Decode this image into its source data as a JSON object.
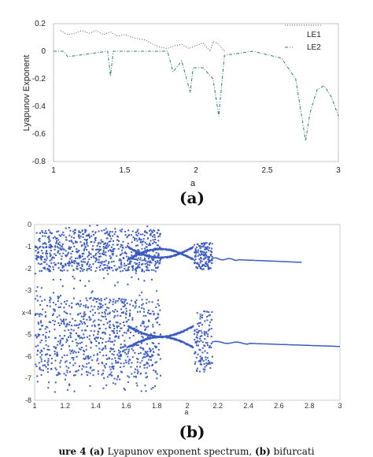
{
  "chart_data": [
    {
      "type": "line",
      "panel_label": "(a)",
      "xlabel": "a",
      "ylabel": "Lyapunov Exponent",
      "xlim": [
        1,
        3
      ],
      "ylim": [
        -0.8,
        0.2
      ],
      "xticks": [
        "1",
        "1.5",
        "2",
        "2.5",
        "3"
      ],
      "yticks": [
        "0.2",
        "0",
        "-0.2",
        "-0.4",
        "-0.6",
        "-0.8"
      ],
      "legend_position": "top-right",
      "series": [
        {
          "name": "LE1",
          "color": "#555555",
          "style": "dotted",
          "x": [
            1.05,
            1.1,
            1.15,
            1.2,
            1.25,
            1.3,
            1.35,
            1.4,
            1.45,
            1.5,
            1.55,
            1.6,
            1.65,
            1.7,
            1.75,
            1.8,
            1.85,
            1.9,
            1.95,
            2.0,
            2.05,
            2.1,
            2.12,
            2.15,
            2.2
          ],
          "values": [
            0.15,
            0.12,
            0.13,
            0.15,
            0.13,
            0.15,
            0.12,
            0.14,
            0.11,
            0.12,
            0.1,
            0.09,
            0.08,
            0.05,
            0.03,
            0.02,
            0.04,
            0.05,
            0.02,
            0.04,
            0.06,
            0.0,
            0.07,
            0.06,
            0.0
          ]
        },
        {
          "name": "LE2",
          "color": "#2e7d6b",
          "style": "dash-dot",
          "x": [
            1.0,
            1.07,
            1.1,
            1.38,
            1.4,
            1.42,
            1.8,
            1.84,
            1.9,
            1.96,
            1.98,
            2.05,
            2.12,
            2.16,
            2.2,
            2.4,
            2.6,
            2.7,
            2.77,
            2.8,
            2.85,
            2.9,
            2.95,
            3.0
          ],
          "values": [
            0.0,
            0.0,
            -0.04,
            0.0,
            -0.18,
            0.0,
            0.0,
            -0.15,
            -0.07,
            -0.3,
            -0.12,
            -0.12,
            -0.2,
            -0.47,
            -0.03,
            0.0,
            -0.05,
            -0.2,
            -0.65,
            -0.45,
            -0.28,
            -0.25,
            -0.33,
            -0.47
          ]
        }
      ]
    },
    {
      "type": "scatter",
      "panel_label": "(b)",
      "xlabel": "a",
      "ylabel": "x",
      "xlim": [
        1,
        3
      ],
      "ylim": [
        -8,
        0
      ],
      "xticks": [
        "1",
        "1.2",
        "1.4",
        "1.6",
        "1.8",
        "2",
        "2.2",
        "2.4",
        "2.6",
        "2.8",
        "3"
      ],
      "yticks": [
        "0",
        "-1",
        "-2",
        "-3",
        "-4",
        "-5",
        "-6",
        "-7",
        "-8"
      ],
      "color": "#3a5bbf",
      "chaotic_region_a": [
        1.0,
        1.82
      ],
      "band_region_a": [
        2.04,
        2.16
      ],
      "period_branches": [
        {
          "a": [
            2.16,
            2.75
          ],
          "x": [
            -1.55,
            -1.72
          ]
        },
        {
          "a": [
            2.16,
            3.0
          ],
          "x": [
            -5.35,
            -5.55
          ]
        }
      ],
      "bubble_region_a": [
        1.82,
        2.04
      ]
    }
  ],
  "caption": {
    "bold_prefix": "ure 4",
    "label_a": "(a)",
    "text_a": " Lyapunov exponent spectrum,",
    "label_b": "(b)",
    "text_b": " bifurcati"
  }
}
